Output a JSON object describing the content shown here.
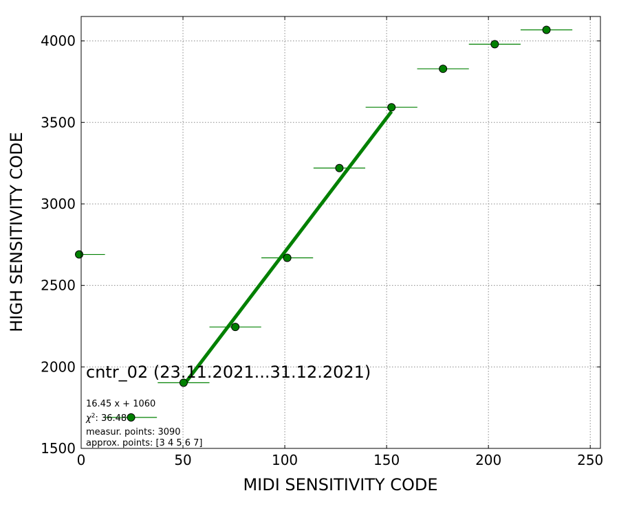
{
  "chart_data": {
    "type": "scatter",
    "xlabel": "MIDI SENSITIVITY CODE",
    "ylabel": "HIGH SENSITIVITY CODE",
    "xlim": [
      0,
      255
    ],
    "ylim": [
      1500,
      4150
    ],
    "xticks": [
      0,
      50,
      100,
      150,
      200,
      250
    ],
    "yticks": [
      1500,
      2000,
      2500,
      3000,
      3500,
      4000
    ],
    "xtick_labels": [
      "0",
      "50",
      "100",
      "150",
      "200",
      "250"
    ],
    "ytick_labels": [
      "1500",
      "2000",
      "2500",
      "3000",
      "3500",
      "4000"
    ],
    "grid": true,
    "grid_style": "dotted",
    "marker_color": "#008000",
    "marker_edge_color": "#000000",
    "fit_color": "#008000",
    "points": [
      {
        "x": -1,
        "y": 2690,
        "xerr": 12.7
      },
      {
        "x": 24.5,
        "y": 1690,
        "xerr": 12.7
      },
      {
        "x": 50.3,
        "y": 1903,
        "xerr": 12.7
      },
      {
        "x": 75.7,
        "y": 2245,
        "xerr": 12.7
      },
      {
        "x": 101.2,
        "y": 2669,
        "xerr": 12.7
      },
      {
        "x": 126.8,
        "y": 3220,
        "xerr": 12.7
      },
      {
        "x": 152.4,
        "y": 3593,
        "xerr": 12.7
      },
      {
        "x": 177.7,
        "y": 3829,
        "xerr": 12.7
      },
      {
        "x": 203.1,
        "y": 3980,
        "xerr": 12.7
      },
      {
        "x": 228.5,
        "y": 4068,
        "xerr": 12.7
      }
    ],
    "fit": {
      "slope": 16.45,
      "intercept": 1060,
      "x_range": [
        50.3,
        152.4
      ]
    },
    "annotations": {
      "title": "cntr_02 (23.11.2021...31.12.2021)",
      "fit_label": "16.45 x + 1060",
      "chi2_label": "χ",
      "chi2_sup": "2",
      "chi2_value": ": 36.48",
      "measur": "measur. points: 3090",
      "approx": "approx. points: [3 4 5 6 7]"
    }
  }
}
